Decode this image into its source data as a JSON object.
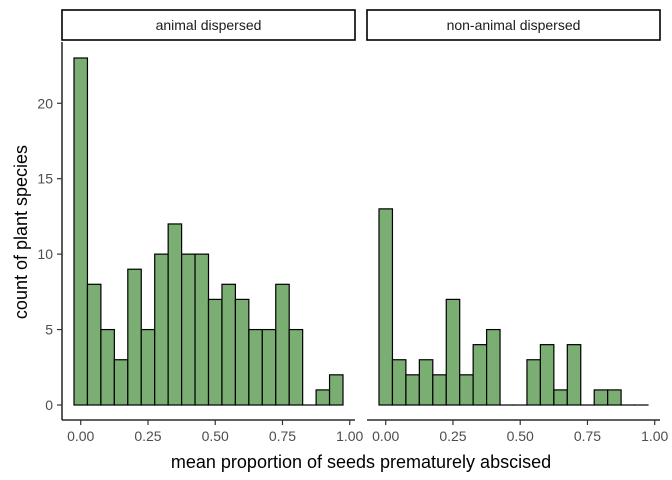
{
  "chart_data": {
    "type": "bar",
    "subtype": "faceted-histogram",
    "xlabel": "mean proportion of seeds premature­ly abscised",
    "ylabel": "count of plant species",
    "xlim": [
      -0.025,
      0.975
    ],
    "ylim": [
      0,
      23
    ],
    "x_ticks": [
      0,
      0.25,
      0.5,
      0.75,
      1
    ],
    "x_tick_labels": [
      "0.00",
      "0.25",
      "0.50",
      "0.75",
      "1.00"
    ],
    "y_ticks": [
      0,
      5,
      10,
      15,
      20
    ],
    "y_tick_labels": [
      "0",
      "5",
      "10",
      "15",
      "20"
    ],
    "bin_width": 0.05,
    "bar_fill": "#7aae72",
    "bar_stroke": "#000000",
    "grid": false,
    "panels": [
      {
        "label": "animal dispersed",
        "bins": [
          0,
          0.05,
          0.1,
          0.15,
          0.2,
          0.25,
          0.3,
          0.35,
          0.4,
          0.45,
          0.5,
          0.55,
          0.6,
          0.65,
          0.7,
          0.75,
          0.8,
          0.85,
          0.9,
          0.95
        ],
        "counts": [
          23,
          8,
          5,
          3,
          9,
          5,
          10,
          12,
          10,
          10,
          7,
          8,
          7,
          5,
          5,
          8,
          5,
          0,
          1,
          2
        ]
      },
      {
        "label": "non-animal dispersed",
        "bins": [
          0,
          0.05,
          0.1,
          0.15,
          0.2,
          0.25,
          0.3,
          0.35,
          0.4,
          0.45,
          0.5,
          0.55,
          0.6,
          0.65,
          0.7,
          0.75,
          0.8,
          0.85,
          0.9,
          0.95
        ],
        "counts": [
          13,
          3,
          2,
          3,
          2,
          7,
          2,
          4,
          5,
          0,
          0,
          3,
          4,
          1,
          4,
          0,
          1,
          1,
          0,
          0
        ]
      }
    ]
  }
}
